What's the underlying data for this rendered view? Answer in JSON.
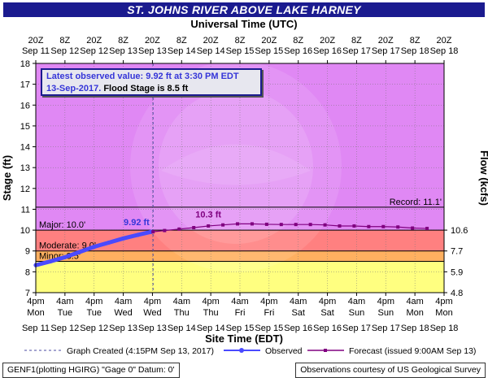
{
  "title": "ST. JOHNS RIVER ABOVE LAKE HARNEY",
  "top_axis_title": "Universal Time (UTC)",
  "bottom_axis_title": "Site Time (EDT)",
  "left_axis_title": "Stage (ft)",
  "right_axis_title": "Flow (kcfs)",
  "info": {
    "line1": "Latest observed value: 9.92 ft at 3:30 PM EDT",
    "line2_date": "13-Sep-2017.",
    "line2_rest": " Flood Stage is 8.5 ft"
  },
  "colors": {
    "plot_bg": "#e088f4",
    "major": "#ff8080",
    "moderate": "#ffb060",
    "minor": "#ffff80",
    "observed": "#4a4aff",
    "forecast": "#800080",
    "title_bar": "#1b1b8f",
    "info_border": "#1b1b8f"
  },
  "legend": {
    "created": "Graph Created (4:15PM Sep 13, 2017)",
    "observed": "Observed",
    "forecast": "Forecast (issued 9:00AM Sep 13)"
  },
  "footer": {
    "left": "GENF1(plotting HGIRG) \"Gage 0\" Datum: 0'",
    "right": "Observations courtesy of US Geological Survey"
  },
  "chart_data": {
    "type": "line",
    "x_unit": "hours since 4pm Mon Sep 11 (EDT)",
    "xlim": [
      0,
      168
    ],
    "ylim": [
      7,
      18
    ],
    "y_ticks": [
      7,
      8,
      9,
      10,
      11,
      12,
      13,
      14,
      15,
      16,
      17,
      18
    ],
    "grid": true,
    "bottom_ticks": [
      {
        "line1": "4pm",
        "line2": "Mon",
        "line3": "Sep 11"
      },
      {
        "line1": "4am",
        "line2": "Tue",
        "line3": "Sep 12"
      },
      {
        "line1": "4pm",
        "line2": "Tue",
        "line3": "Sep 12"
      },
      {
        "line1": "4am",
        "line2": "Wed",
        "line3": "Sep 13"
      },
      {
        "line1": "4pm",
        "line2": "Wed",
        "line3": "Sep 13"
      },
      {
        "line1": "4am",
        "line2": "Thu",
        "line3": "Sep 14"
      },
      {
        "line1": "4pm",
        "line2": "Thu",
        "line3": "Sep 14"
      },
      {
        "line1": "4am",
        "line2": "Fri",
        "line3": "Sep 15"
      },
      {
        "line1": "4pm",
        "line2": "Fri",
        "line3": "Sep 15"
      },
      {
        "line1": "4am",
        "line2": "Sat",
        "line3": "Sep 16"
      },
      {
        "line1": "4pm",
        "line2": "Sat",
        "line3": "Sep 16"
      },
      {
        "line1": "4am",
        "line2": "Sun",
        "line3": "Sep 17"
      },
      {
        "line1": "4pm",
        "line2": "Sun",
        "line3": "Sep 17"
      },
      {
        "line1": "4am",
        "line2": "Mon",
        "line3": "Sep 18"
      },
      {
        "line1": "4pm",
        "line2": "Mon",
        "line3": "Sep 18"
      }
    ],
    "top_ticks": [
      {
        "line1": "20Z",
        "line2": "Sep 11"
      },
      {
        "line1": "8Z",
        "line2": "Sep 12"
      },
      {
        "line1": "20Z",
        "line2": "Sep 12"
      },
      {
        "line1": "8Z",
        "line2": "Sep 13"
      },
      {
        "line1": "20Z",
        "line2": "Sep 13"
      },
      {
        "line1": "8Z",
        "line2": "Sep 14"
      },
      {
        "line1": "20Z",
        "line2": "Sep 14"
      },
      {
        "line1": "8Z",
        "line2": "Sep 15"
      },
      {
        "line1": "20Z",
        "line2": "Sep 15"
      },
      {
        "line1": "8Z",
        "line2": "Sep 16"
      },
      {
        "line1": "20Z",
        "line2": "Sep 16"
      },
      {
        "line1": "8Z",
        "line2": "Sep 17"
      },
      {
        "line1": "20Z",
        "line2": "Sep 17"
      },
      {
        "line1": "8Z",
        "line2": "Sep 18"
      },
      {
        "line1": "20Z",
        "line2": "Sep 18"
      }
    ],
    "right_ticks": [
      {
        "stage": 10,
        "label": "10.6"
      },
      {
        "stage": 9,
        "label": "7.7"
      },
      {
        "stage": 8,
        "label": "5.9"
      },
      {
        "stage": 7,
        "label": "4.8"
      }
    ],
    "flood_categories": [
      {
        "name": "Record",
        "label": "Record: 11.1'",
        "value": 11.1
      },
      {
        "name": "Major",
        "label": "Major: 10.0'",
        "value": 10.0
      },
      {
        "name": "Moderate",
        "label": "Moderate: 9.0'",
        "value": 9.0
      },
      {
        "name": "Minor",
        "label": "Minor: 8.5'",
        "value": 8.5
      }
    ],
    "graph_created_x": 48.25,
    "observed": {
      "x": [
        0,
        6,
        12,
        18,
        24,
        30,
        36,
        42,
        47.5
      ],
      "y": [
        8.32,
        8.5,
        8.7,
        8.95,
        9.2,
        9.4,
        9.6,
        9.77,
        9.92
      ]
    },
    "observed_label": {
      "text": "9.92 ft",
      "x": 47.5,
      "y": 9.92
    },
    "forecast": {
      "x": [
        48.25,
        53,
        59,
        65,
        71,
        77,
        83,
        89,
        95,
        101,
        107,
        113,
        119,
        125,
        131,
        137,
        143,
        149,
        155,
        161
      ],
      "y": [
        9.92,
        9.98,
        10.05,
        10.12,
        10.2,
        10.25,
        10.3,
        10.3,
        10.28,
        10.27,
        10.27,
        10.27,
        10.25,
        10.2,
        10.2,
        10.17,
        10.17,
        10.15,
        10.1,
        10.08
      ]
    },
    "forecast_label": {
      "text": "10.3 ft",
      "x": 71,
      "y": 10.3
    }
  }
}
